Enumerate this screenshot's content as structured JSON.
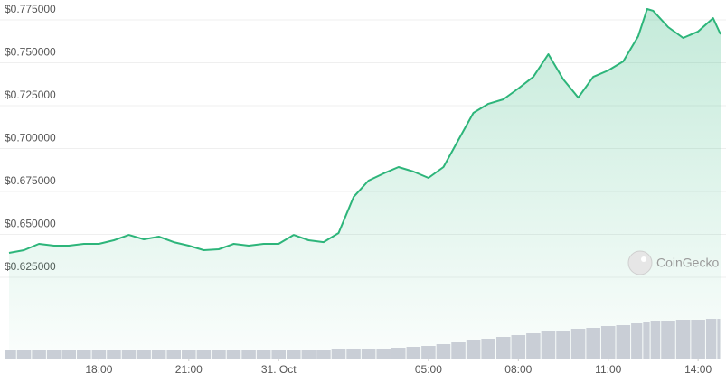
{
  "chart_data": {
    "type": "line",
    "watermark": "CoinGecko",
    "x": [
      15,
      15.5,
      16,
      16.5,
      17,
      17.5,
      18,
      18.5,
      19,
      19.5,
      20,
      20.5,
      21,
      21.5,
      22,
      22.5,
      23,
      23.5,
      24,
      24.5,
      25,
      25.5,
      26,
      26.5,
      27,
      27.5,
      28,
      28.5,
      29,
      29.5,
      30,
      30.5,
      31,
      31.5,
      32,
      32.5,
      33,
      33.5,
      34,
      34.5,
      35,
      35.5,
      36,
      36.3,
      36.5,
      37,
      37.5,
      38,
      38.5,
      38.75
    ],
    "series": [
      {
        "color": "#2db57a",
        "values": [
          0.6392,
          0.6408,
          0.6445,
          0.6434,
          0.6434,
          0.6445,
          0.6445,
          0.6466,
          0.6497,
          0.6471,
          0.6487,
          0.6455,
          0.6434,
          0.6408,
          0.6413,
          0.6445,
          0.6434,
          0.6445,
          0.6445,
          0.6497,
          0.6466,
          0.6455,
          0.6508,
          0.6718,
          0.6813,
          0.6855,
          0.6892,
          0.6866,
          0.6829,
          0.6892,
          0.705,
          0.7208,
          0.7261,
          0.7287,
          0.735,
          0.7418,
          0.755,
          0.7403,
          0.7297,
          0.7418,
          0.7455,
          0.7508,
          0.7655,
          0.7813,
          0.7803,
          0.7708,
          0.7645,
          0.7682,
          0.776,
          0.7666
        ]
      },
      {
        "type": "bar",
        "axis": "y2",
        "color": "#c9ced6",
        "values": [
          9,
          9,
          9,
          9,
          9,
          9,
          9,
          9,
          9,
          9,
          9,
          9,
          9,
          9,
          9,
          9,
          9,
          9,
          9,
          9,
          9,
          9,
          10,
          10,
          11,
          11,
          12,
          13,
          14,
          16,
          18,
          20,
          22,
          24,
          26,
          28,
          30,
          31,
          33,
          34,
          36,
          37,
          39,
          40,
          41,
          42,
          43,
          43,
          44,
          44
        ]
      }
    ],
    "xlim": [
      14.85,
      38.75
    ],
    "xticks": [
      {
        "value": 18,
        "label": "18:00"
      },
      {
        "value": 21,
        "label": "21:00"
      },
      {
        "value": 24,
        "label": "31. Oct"
      },
      {
        "value": 29,
        "label": "05:00"
      },
      {
        "value": 32,
        "label": "08:00"
      },
      {
        "value": 35,
        "label": "11:00"
      },
      {
        "value": 38,
        "label": "14:00"
      }
    ],
    "ylim": [
      0.61,
      0.785
    ],
    "yticks": [
      {
        "value": 0.625,
        "label": "$0.625000"
      },
      {
        "value": 0.65,
        "label": "$0.650000"
      },
      {
        "value": 0.675,
        "label": "$0.675000"
      },
      {
        "value": 0.7,
        "label": "$0.700000"
      },
      {
        "value": 0.725,
        "label": "$0.725000"
      },
      {
        "value": 0.75,
        "label": "$0.750000"
      },
      {
        "value": 0.775,
        "label": "$0.775000"
      }
    ],
    "y2lim": [
      0,
      50
    ],
    "grid": true
  }
}
